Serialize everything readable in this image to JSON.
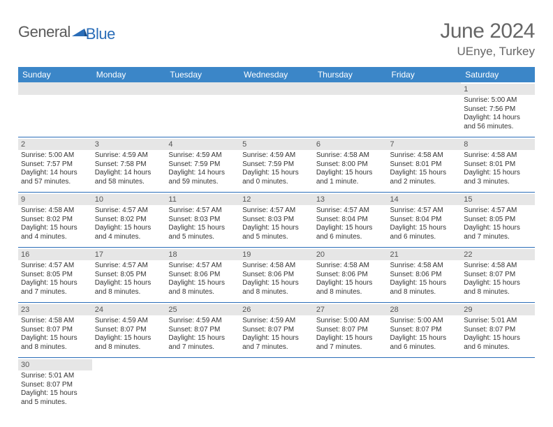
{
  "logo": {
    "text1": "General",
    "text2": "Blue",
    "arrow_color": "#2a6db8"
  },
  "title": "June 2024",
  "location": "UEnye, Turkey",
  "header_bg": "#3b86c8",
  "date_bar_bg": "#e6e6e6",
  "week_border": "#2a6db8",
  "days": [
    "Sunday",
    "Monday",
    "Tuesday",
    "Wednesday",
    "Thursday",
    "Friday",
    "Saturday"
  ],
  "weeks": [
    [
      null,
      null,
      null,
      null,
      null,
      null,
      {
        "d": "1",
        "sr": "Sunrise: 5:00 AM",
        "ss": "Sunset: 7:56 PM",
        "dl1": "Daylight: 14 hours",
        "dl2": "and 56 minutes."
      }
    ],
    [
      {
        "d": "2",
        "sr": "Sunrise: 5:00 AM",
        "ss": "Sunset: 7:57 PM",
        "dl1": "Daylight: 14 hours",
        "dl2": "and 57 minutes."
      },
      {
        "d": "3",
        "sr": "Sunrise: 4:59 AM",
        "ss": "Sunset: 7:58 PM",
        "dl1": "Daylight: 14 hours",
        "dl2": "and 58 minutes."
      },
      {
        "d": "4",
        "sr": "Sunrise: 4:59 AM",
        "ss": "Sunset: 7:59 PM",
        "dl1": "Daylight: 14 hours",
        "dl2": "and 59 minutes."
      },
      {
        "d": "5",
        "sr": "Sunrise: 4:59 AM",
        "ss": "Sunset: 7:59 PM",
        "dl1": "Daylight: 15 hours",
        "dl2": "and 0 minutes."
      },
      {
        "d": "6",
        "sr": "Sunrise: 4:58 AM",
        "ss": "Sunset: 8:00 PM",
        "dl1": "Daylight: 15 hours",
        "dl2": "and 1 minute."
      },
      {
        "d": "7",
        "sr": "Sunrise: 4:58 AM",
        "ss": "Sunset: 8:01 PM",
        "dl1": "Daylight: 15 hours",
        "dl2": "and 2 minutes."
      },
      {
        "d": "8",
        "sr": "Sunrise: 4:58 AM",
        "ss": "Sunset: 8:01 PM",
        "dl1": "Daylight: 15 hours",
        "dl2": "and 3 minutes."
      }
    ],
    [
      {
        "d": "9",
        "sr": "Sunrise: 4:58 AM",
        "ss": "Sunset: 8:02 PM",
        "dl1": "Daylight: 15 hours",
        "dl2": "and 4 minutes."
      },
      {
        "d": "10",
        "sr": "Sunrise: 4:57 AM",
        "ss": "Sunset: 8:02 PM",
        "dl1": "Daylight: 15 hours",
        "dl2": "and 4 minutes."
      },
      {
        "d": "11",
        "sr": "Sunrise: 4:57 AM",
        "ss": "Sunset: 8:03 PM",
        "dl1": "Daylight: 15 hours",
        "dl2": "and 5 minutes."
      },
      {
        "d": "12",
        "sr": "Sunrise: 4:57 AM",
        "ss": "Sunset: 8:03 PM",
        "dl1": "Daylight: 15 hours",
        "dl2": "and 5 minutes."
      },
      {
        "d": "13",
        "sr": "Sunrise: 4:57 AM",
        "ss": "Sunset: 8:04 PM",
        "dl1": "Daylight: 15 hours",
        "dl2": "and 6 minutes."
      },
      {
        "d": "14",
        "sr": "Sunrise: 4:57 AM",
        "ss": "Sunset: 8:04 PM",
        "dl1": "Daylight: 15 hours",
        "dl2": "and 6 minutes."
      },
      {
        "d": "15",
        "sr": "Sunrise: 4:57 AM",
        "ss": "Sunset: 8:05 PM",
        "dl1": "Daylight: 15 hours",
        "dl2": "and 7 minutes."
      }
    ],
    [
      {
        "d": "16",
        "sr": "Sunrise: 4:57 AM",
        "ss": "Sunset: 8:05 PM",
        "dl1": "Daylight: 15 hours",
        "dl2": "and 7 minutes."
      },
      {
        "d": "17",
        "sr": "Sunrise: 4:57 AM",
        "ss": "Sunset: 8:05 PM",
        "dl1": "Daylight: 15 hours",
        "dl2": "and 8 minutes."
      },
      {
        "d": "18",
        "sr": "Sunrise: 4:57 AM",
        "ss": "Sunset: 8:06 PM",
        "dl1": "Daylight: 15 hours",
        "dl2": "and 8 minutes."
      },
      {
        "d": "19",
        "sr": "Sunrise: 4:58 AM",
        "ss": "Sunset: 8:06 PM",
        "dl1": "Daylight: 15 hours",
        "dl2": "and 8 minutes."
      },
      {
        "d": "20",
        "sr": "Sunrise: 4:58 AM",
        "ss": "Sunset: 8:06 PM",
        "dl1": "Daylight: 15 hours",
        "dl2": "and 8 minutes."
      },
      {
        "d": "21",
        "sr": "Sunrise: 4:58 AM",
        "ss": "Sunset: 8:06 PM",
        "dl1": "Daylight: 15 hours",
        "dl2": "and 8 minutes."
      },
      {
        "d": "22",
        "sr": "Sunrise: 4:58 AM",
        "ss": "Sunset: 8:07 PM",
        "dl1": "Daylight: 15 hours",
        "dl2": "and 8 minutes."
      }
    ],
    [
      {
        "d": "23",
        "sr": "Sunrise: 4:58 AM",
        "ss": "Sunset: 8:07 PM",
        "dl1": "Daylight: 15 hours",
        "dl2": "and 8 minutes."
      },
      {
        "d": "24",
        "sr": "Sunrise: 4:59 AM",
        "ss": "Sunset: 8:07 PM",
        "dl1": "Daylight: 15 hours",
        "dl2": "and 8 minutes."
      },
      {
        "d": "25",
        "sr": "Sunrise: 4:59 AM",
        "ss": "Sunset: 8:07 PM",
        "dl1": "Daylight: 15 hours",
        "dl2": "and 7 minutes."
      },
      {
        "d": "26",
        "sr": "Sunrise: 4:59 AM",
        "ss": "Sunset: 8:07 PM",
        "dl1": "Daylight: 15 hours",
        "dl2": "and 7 minutes."
      },
      {
        "d": "27",
        "sr": "Sunrise: 5:00 AM",
        "ss": "Sunset: 8:07 PM",
        "dl1": "Daylight: 15 hours",
        "dl2": "and 7 minutes."
      },
      {
        "d": "28",
        "sr": "Sunrise: 5:00 AM",
        "ss": "Sunset: 8:07 PM",
        "dl1": "Daylight: 15 hours",
        "dl2": "and 6 minutes."
      },
      {
        "d": "29",
        "sr": "Sunrise: 5:01 AM",
        "ss": "Sunset: 8:07 PM",
        "dl1": "Daylight: 15 hours",
        "dl2": "and 6 minutes."
      }
    ],
    [
      {
        "d": "30",
        "sr": "Sunrise: 5:01 AM",
        "ss": "Sunset: 8:07 PM",
        "dl1": "Daylight: 15 hours",
        "dl2": "and 5 minutes."
      },
      null,
      null,
      null,
      null,
      null,
      null
    ]
  ]
}
